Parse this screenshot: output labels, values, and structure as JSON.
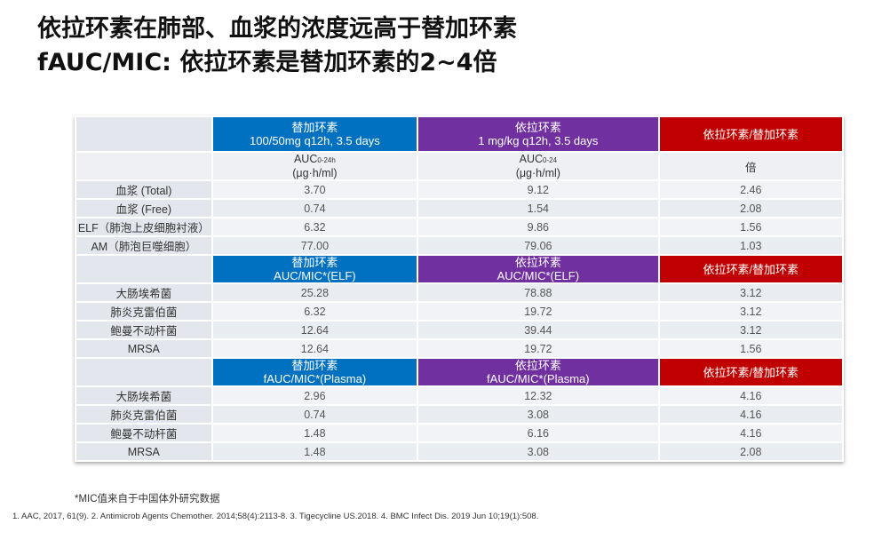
{
  "title": {
    "line1": "依拉环素在肺部、血浆的浓度远高于替加环素",
    "line2": "fAUC/MIC: 依拉环素是替加环素的2~4倍"
  },
  "section1": {
    "h1": "替加环素",
    "h1b": "100/50mg q12h, 3.5 days",
    "h2": "依拉环素",
    "h2b": "1 mg/kg q12h, 3.5 days",
    "h3": "依拉环素/替加环素",
    "sub1a": "AUC",
    "sub1s": "0-24h",
    "sub1b": "(μg·h/ml)",
    "sub2a": "AUC",
    "sub2s": "0-24",
    "sub2b": "(μg·h/ml)",
    "sub3": "倍",
    "rows": [
      [
        "血浆 (Total)",
        "3.70",
        "9.12",
        "2.46"
      ],
      [
        "血浆 (Free)",
        "0.74",
        "1.54",
        "2.08"
      ],
      [
        "ELF（肺泡上皮细胞衬液）",
        "6.32",
        "9.86",
        "1.56"
      ],
      [
        "AM（肺泡巨噬细胞）",
        "77.00",
        "79.06",
        "1.03"
      ]
    ]
  },
  "section2": {
    "h1": "替加环素",
    "h1b": "AUC/MIC*(ELF)",
    "h2": "依拉环素",
    "h2b": "AUC/MIC*(ELF)",
    "h3": "依拉环素/替加环素",
    "rows": [
      [
        "大肠埃希菌",
        "25.28",
        "78.88",
        "3.12"
      ],
      [
        "肺炎克雷伯菌",
        "6.32",
        "19.72",
        "3.12"
      ],
      [
        "鲍曼不动杆菌",
        "12.64",
        "39.44",
        "3.12"
      ],
      [
        "MRSA",
        "12.64",
        "19.72",
        "1.56"
      ]
    ]
  },
  "section3": {
    "h1": "替加环素",
    "h1b": "fAUC/MIC*(Plasma)",
    "h2": "依拉环素",
    "h2b": "fAUC/MIC*(Plasma)",
    "h3": "依拉环素/替加环素",
    "rows": [
      [
        "大肠埃希菌",
        "2.96",
        "12.32",
        "4.16"
      ],
      [
        "肺炎克雷伯菌",
        "0.74",
        "3.08",
        "4.16"
      ],
      [
        "鲍曼不动杆菌",
        "1.48",
        "6.16",
        "4.16"
      ],
      [
        "MRSA",
        "1.48",
        "3.08",
        "2.08"
      ]
    ]
  },
  "note": "*MIC值来自于中国体外研究数据",
  "refs": "1. AAC, 2017, 61(9).   2. Antimicrob Agents Chemother. 2014;58(4):2113-8.  3. Tigecycline US.2018.  4. BMC Infect Dis. 2019 Jun 10;19(1):508."
}
